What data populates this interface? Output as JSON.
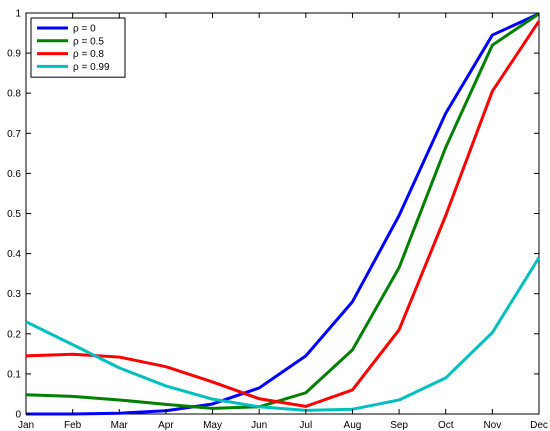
{
  "chart_data": {
    "type": "line",
    "title": "",
    "xlabel": "",
    "ylabel": "",
    "categories": [
      "Jan",
      "Feb",
      "Mar",
      "Apr",
      "May",
      "Jun",
      "Jul",
      "Aug",
      "Sep",
      "Oct",
      "Nov",
      "Dec"
    ],
    "ylim": [
      0,
      1
    ],
    "yticks": [
      "0",
      "0.1",
      "0.2",
      "0.3",
      "0.4",
      "0.5",
      "0.6",
      "0.7",
      "0.8",
      "0.9",
      "1"
    ],
    "grid": false,
    "legend_position": "top-left",
    "series": [
      {
        "name": "ρ = 0",
        "color": "#0000ff",
        "values": [
          0.0,
          0.0,
          0.002,
          0.008,
          0.025,
          0.065,
          0.145,
          0.28,
          0.495,
          0.75,
          0.945,
          0.998
        ]
      },
      {
        "name": "ρ = 0.5",
        "color": "#008000",
        "values": [
          0.048,
          0.044,
          0.035,
          0.024,
          0.014,
          0.018,
          0.053,
          0.16,
          0.365,
          0.665,
          0.92,
          0.998
        ]
      },
      {
        "name": "ρ = 0.8",
        "color": "#ff0000",
        "values": [
          0.145,
          0.149,
          0.142,
          0.118,
          0.08,
          0.038,
          0.019,
          0.06,
          0.21,
          0.495,
          0.805,
          0.98
        ]
      },
      {
        "name": "ρ = 0.99",
        "color": "#00bfbf",
        "values": [
          0.23,
          0.173,
          0.115,
          0.07,
          0.037,
          0.018,
          0.009,
          0.012,
          0.035,
          0.09,
          0.203,
          0.39
        ]
      }
    ]
  }
}
